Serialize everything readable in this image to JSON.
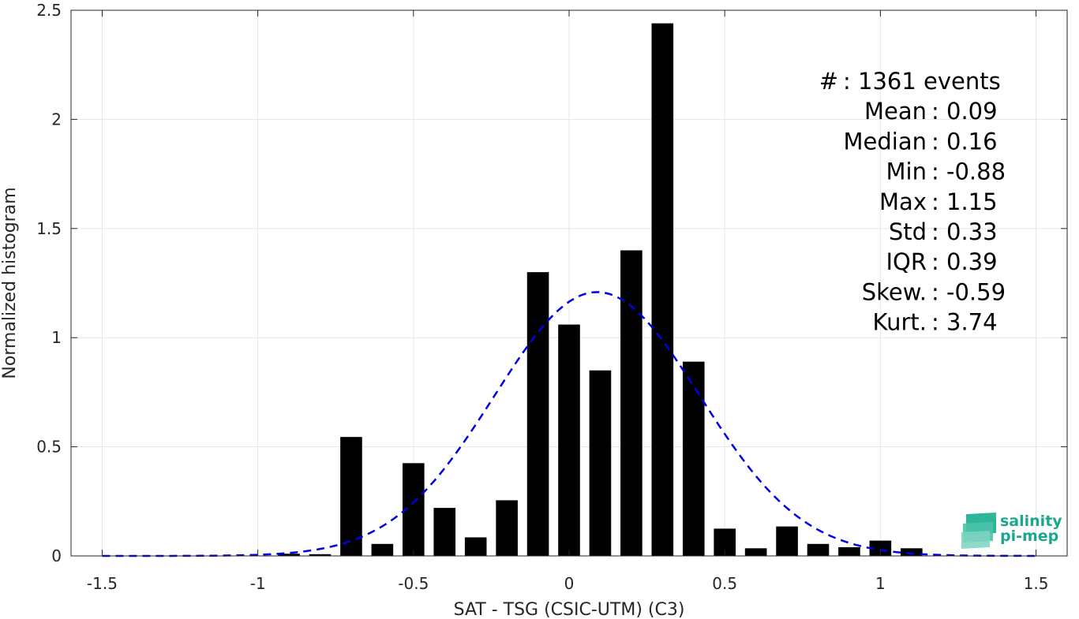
{
  "chart_data": {
    "type": "bar",
    "xlabel": "SAT - TSG (CSIC-UTM) (C3)",
    "ylabel": "Normalized histogram",
    "xlim": [
      -1.6,
      1.6
    ],
    "ylim": [
      0,
      2.5
    ],
    "xticks": [
      -1.5,
      -1,
      -0.5,
      0,
      0.5,
      1,
      1.5
    ],
    "xtick_labels": [
      "-1.5",
      "-1",
      "-0.5",
      "0",
      "0.5",
      "1",
      "1.5"
    ],
    "yticks": [
      0,
      0.5,
      1,
      1.5,
      2,
      2.5
    ],
    "ytick_labels": [
      "0",
      "0.5",
      "1",
      "1.5",
      "2",
      "2.5"
    ],
    "grid": true,
    "bar_width": 0.07,
    "bar_color": "#000000",
    "bars": [
      {
        "x": -0.9,
        "y": 0.01
      },
      {
        "x": -0.8,
        "y": 0.008
      },
      {
        "x": -0.7,
        "y": 0.545
      },
      {
        "x": -0.6,
        "y": 0.055
      },
      {
        "x": -0.5,
        "y": 0.425
      },
      {
        "x": -0.4,
        "y": 0.22
      },
      {
        "x": -0.3,
        "y": 0.085
      },
      {
        "x": -0.2,
        "y": 0.255
      },
      {
        "x": -0.1,
        "y": 1.3
      },
      {
        "x": 0.0,
        "y": 1.06
      },
      {
        "x": 0.1,
        "y": 0.85
      },
      {
        "x": 0.2,
        "y": 1.4
      },
      {
        "x": 0.3,
        "y": 2.44
      },
      {
        "x": 0.4,
        "y": 0.89
      },
      {
        "x": 0.5,
        "y": 0.125
      },
      {
        "x": 0.6,
        "y": 0.035
      },
      {
        "x": 0.7,
        "y": 0.135
      },
      {
        "x": 0.8,
        "y": 0.055
      },
      {
        "x": 0.9,
        "y": 0.04
      },
      {
        "x": 1.0,
        "y": 0.07
      },
      {
        "x": 1.1,
        "y": 0.035
      }
    ],
    "fit_curve": {
      "type": "gaussian",
      "mean": 0.09,
      "std": 0.33,
      "x_range": [
        -1.5,
        1.5
      ],
      "color": "#0000e6",
      "style": "dashed"
    },
    "stats": [
      "#  : 1361 events",
      "Mean : 0.09",
      "Median : 0.16",
      "Min : -0.88",
      "Max : 1.15",
      "Std : 0.33",
      "IQR : 0.39",
      "Skew. : -0.59",
      "Kurt. : 3.74"
    ]
  },
  "logo": {
    "line1": "salinity",
    "line2": "pi-mep",
    "color": "#1aa88e"
  }
}
